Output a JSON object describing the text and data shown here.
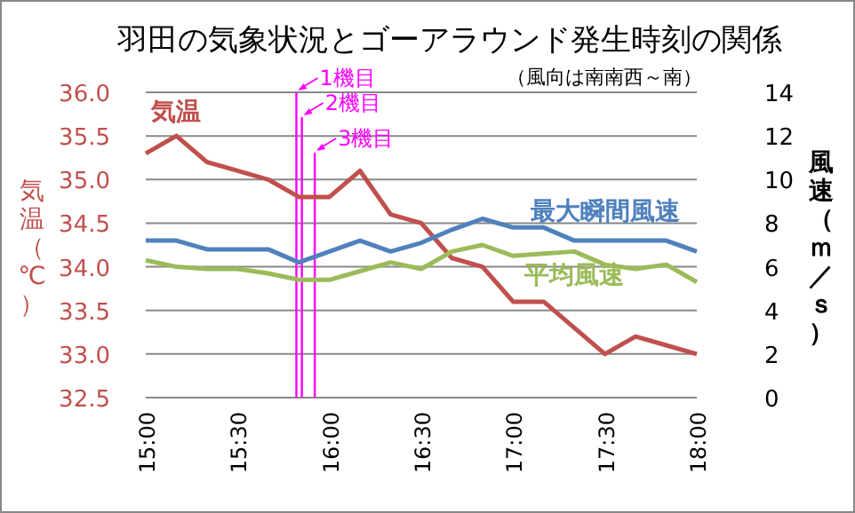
{
  "chart_data": {
    "type": "line",
    "title": "羽田の気象状況とゴーアラウンド発生時刻の関係",
    "subtitle": "（風向は南南西～南）",
    "ylabel": "気温（℃）",
    "y2label": "風速（ｍ／ｓ）",
    "x": [
      15,
      15.1667,
      15.3333,
      15.5,
      15.6667,
      15.8333,
      16,
      16.1667,
      16.3333,
      16.5,
      16.6667,
      16.8333,
      17,
      17.1667,
      17.3333,
      17.5,
      17.6667,
      17.8333,
      18
    ],
    "xlim": [
      15,
      18
    ],
    "xticks": [
      {
        "value": 15,
        "label": "15:00"
      },
      {
        "value": 15.5,
        "label": "15:30"
      },
      {
        "value": 16,
        "label": "16:00"
      },
      {
        "value": 16.5,
        "label": "16:30"
      },
      {
        "value": 17,
        "label": "17:00"
      },
      {
        "value": 17.5,
        "label": "17:30"
      },
      {
        "value": 18,
        "label": "18:00"
      }
    ],
    "ylim": [
      32.5,
      36
    ],
    "yticks": [
      32.5,
      {
        "value": 33,
        "label": "33.0"
      },
      33.5,
      {
        "value": 34,
        "label": "34.0"
      },
      34.5,
      {
        "value": 35,
        "label": "35.0"
      },
      35.5,
      {
        "value": 36,
        "label": "36.0"
      }
    ],
    "y2lim": [
      0,
      14
    ],
    "y2ticks": [
      0,
      2,
      4,
      6,
      8,
      10,
      12,
      14
    ],
    "series": [
      {
        "name": "気温",
        "color": "#c0504d",
        "values": [
          35.3,
          35.5,
          35.2,
          35.1,
          35.0,
          34.8,
          34.8,
          35.1,
          34.6,
          34.5,
          34.1,
          34.0,
          33.6,
          33.6,
          33.3,
          33.0,
          33.2,
          33.1,
          33.0
        ]
      },
      {
        "name": "最大瞬間風速",
        "color": "#4f81bd",
        "axis": "y2",
        "values": [
          7.2,
          7.2,
          6.8,
          6.8,
          6.8,
          6.2,
          6.7,
          7.2,
          6.7,
          7.1,
          7.7,
          8.2,
          7.8,
          7.8,
          7.2,
          7.2,
          7.2,
          7.2,
          6.7
        ]
      },
      {
        "name": "平均風速",
        "color": "#9bbb59",
        "axis": "y2",
        "values": [
          6.3,
          6.0,
          5.9,
          5.9,
          5.7,
          5.4,
          5.4,
          5.8,
          6.2,
          5.9,
          6.7,
          7.0,
          6.5,
          6.6,
          6.7,
          6.1,
          5.9,
          6.1,
          5.3
        ]
      }
    ],
    "ref_lines": [
      {
        "axis": "x",
        "value": 15.82,
        "label": "1機目",
        "color": "#ff00ff"
      },
      {
        "axis": "x",
        "value": 15.85,
        "label": "2機目",
        "color": "#ff00ff"
      },
      {
        "axis": "x",
        "value": 15.92,
        "label": "3機目",
        "color": "#ff00ff"
      }
    ],
    "grid": "y",
    "legend": false,
    "marker": "none",
    "line_style": "solid"
  }
}
